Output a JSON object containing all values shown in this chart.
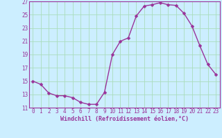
{
  "x": [
    0,
    1,
    2,
    3,
    4,
    5,
    6,
    7,
    8,
    9,
    10,
    11,
    12,
    13,
    14,
    15,
    16,
    17,
    18,
    19,
    20,
    21,
    22,
    23
  ],
  "y": [
    15.0,
    14.5,
    13.2,
    12.8,
    12.8,
    12.5,
    11.8,
    11.5,
    11.5,
    13.3,
    19.0,
    21.0,
    21.5,
    24.8,
    26.3,
    26.5,
    26.8,
    26.5,
    26.4,
    25.2,
    23.3,
    20.3,
    17.5,
    16.0
  ],
  "line_color": "#993399",
  "marker": "D",
  "markersize": 2.5,
  "linewidth": 1.0,
  "background_color": "#cceeff",
  "grid_color": "#aaddbb",
  "xlabel": "Windchill (Refroidissement éolien,°C)",
  "xlabel_color": "#993399",
  "tick_color": "#993399",
  "spine_color": "#993399",
  "ylim": [
    11,
    27
  ],
  "xlim": [
    -0.5,
    23.5
  ],
  "yticks": [
    11,
    13,
    15,
    17,
    19,
    21,
    23,
    25,
    27
  ],
  "xticks": [
    0,
    1,
    2,
    3,
    4,
    5,
    6,
    7,
    8,
    9,
    10,
    11,
    12,
    13,
    14,
    15,
    16,
    17,
    18,
    19,
    20,
    21,
    22,
    23
  ],
  "tick_fontsize": 5.5,
  "xlabel_fontsize": 6.0,
  "xlabel_fontweight": "bold"
}
